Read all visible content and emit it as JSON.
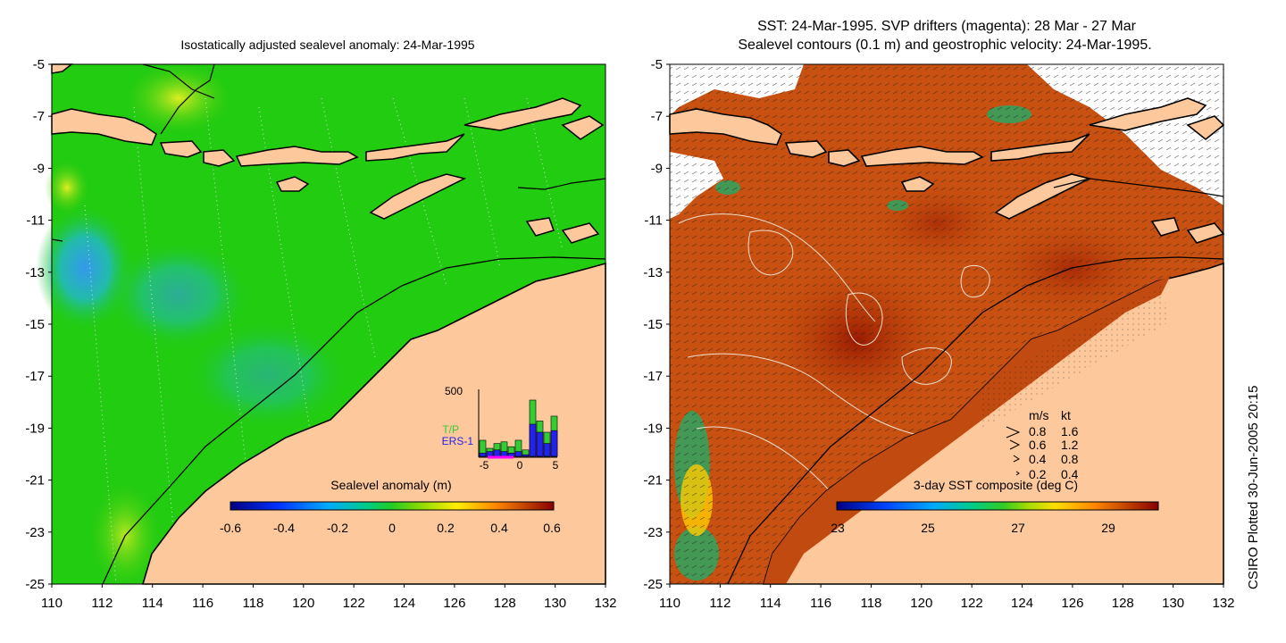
{
  "left_panel": {
    "title": "Isostatically adjusted sealevel anomaly: 24-Mar-1995",
    "colorbar": {
      "label": "Sealevel anomaly (m)",
      "ticks": [
        "-0.6",
        "-0.4",
        "-0.2",
        "0",
        "0.2",
        "0.4",
        "0.6"
      ]
    },
    "histogram": {
      "ymax_label": "500",
      "legend_tp": "T/P",
      "legend_ers": "ERS-1",
      "x_ticks": [
        "-5",
        "0",
        "5"
      ],
      "tp_values": [
        1,
        0.5,
        0.8,
        0.9,
        0.6,
        1,
        0.4,
        3.5,
        2.2,
        1.5,
        2.5
      ],
      "ers_values": [
        0.2,
        0.3,
        0.4,
        0.3,
        0.2,
        0.3,
        0.1,
        2.0,
        1.5,
        0.8,
        1.6
      ],
      "tp_color": "#33cc33",
      "ers_color": "#2222ee"
    }
  },
  "right_panel": {
    "title_line1": "SST: 24-Mar-1995. SVP drifters (magenta): 28 Mar - 27 Mar",
    "title_line2": "Sealevel contours (0.1 m) and geostrophic velocity: 24-Mar-1995.",
    "colorbar": {
      "label": "3-day SST composite (deg C)",
      "ticks": [
        "23",
        "25",
        "27",
        "29"
      ]
    },
    "velocity_legend": {
      "header_ms": "m/s",
      "header_kt": "kt",
      "rows": [
        {
          "ms": "0.8",
          "kt": "1.6"
        },
        {
          "ms": "0.6",
          "kt": "1.2"
        },
        {
          "ms": "0.4",
          "kt": "0.8"
        },
        {
          "ms": "0.2",
          "kt": "0.4"
        }
      ]
    }
  },
  "axes": {
    "y_ticks": [
      "-5",
      "-7",
      "-9",
      "-11",
      "-13",
      "-15",
      "-17",
      "-19",
      "-21",
      "-23",
      "-25"
    ],
    "x_ticks": [
      "110",
      "112",
      "114",
      "116",
      "118",
      "120",
      "122",
      "124",
      "126",
      "128",
      "130",
      "132"
    ]
  },
  "side_credit": "CSIRO Plotted 30-Jun-2005 20:15",
  "colors": {
    "land": "#fdc89b",
    "ocean_green": "#22cc11",
    "sst_base": "#c85010"
  }
}
